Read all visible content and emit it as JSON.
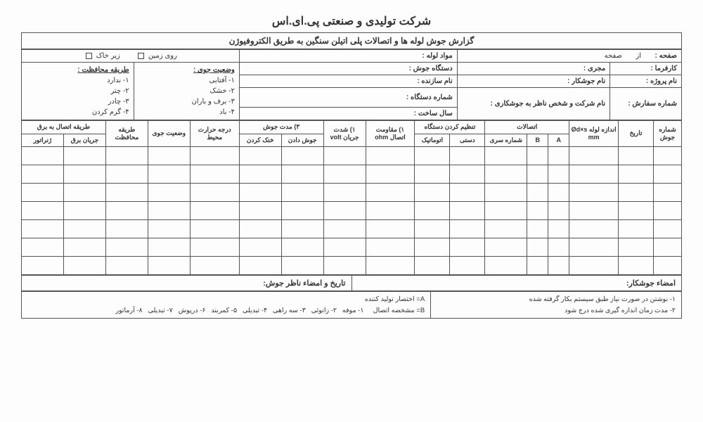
{
  "company": "شرکت تولیدی و صنعتی پی.ای.اس",
  "report_title": "گزارش جوش لوله ها و اتصالات پلی اتیلن سنگین به طریق الکتروفیوژن",
  "hdr": {
    "page_prefix": "صفحه :",
    "of": "از",
    "page_word": "صفحه",
    "pipe_material": "مواد لوله :",
    "on_ground": "روی زمین",
    "under_soil": "زیر خاک",
    "client": "کارفرما :",
    "contractor": "مجری :",
    "device": "دستگاه جوش :",
    "weather_title": "وضعیت جوی :",
    "protect_title": "طریقه محافظت :",
    "project": "نام پروژه :",
    "welder": "نام جوشکار :",
    "maker": "نام سازنده :",
    "order": "شماره سفارش :",
    "supervisor": "نام شرکت و شخص ناظر به جوشکاری :",
    "device_no": "شماره دستگاه :",
    "year": "سال ساخت :"
  },
  "weather": {
    "w1": "۱- آفتابی",
    "w2": "۲- خشک",
    "w3": "۳- برف و باران",
    "w4": "۴- باد"
  },
  "protect": {
    "p1": "۱- ندارد",
    "p2": "۲- چتر",
    "p3": "۳- چادر",
    "p4": "۴- گرم کردن"
  },
  "cols": {
    "weld_no": "شماره جوش",
    "date": "تاریخ",
    "pipe_size": "اندازه لوله Ød×s mm",
    "fittings": "اتصالات",
    "a": "A",
    "b": "B",
    "serial": "شماره سری",
    "device_set": "تنظیم کردن دستگاه",
    "manual": "دستی",
    "auto": "اتوماتیک",
    "resistance": "۱) مقاومت اتصال ohm",
    "current": "۱) شدت جریان volt",
    "weld_time": "۳) مدت جوش",
    "welding": "جوش دادن",
    "cooling": "خنک کردن",
    "ambient": "درجه حرارت محیط",
    "weather_col": "وضعیت جوی",
    "protect_col": "طریقه محافظت",
    "power": "طریقه اتصال به برق",
    "grid": "جریان برق",
    "gen": "ژنراتور"
  },
  "sig": {
    "welder_sig": "امضاء جوشکار:",
    "inspector_sig": "تاریخ و امضاء ناظر جوش:"
  },
  "legend": {
    "l1": "۱- نوشتن در صورت نیاز طبق سیستم بکار گرفته شده",
    "l2": "۲- مدت زمان اندازه گیری شده درج شود",
    "a_line": "A= اختصار تولید کننده",
    "b_line": "B= مشخصه اتصال",
    "items": "۱- موفه   ۲- زانوئی   ۳- سه راهی   ۴- تبدیلی   ۵- کمربند   ۶- درپوش   ۷- تبدیلی   ۸- آرماتور"
  },
  "style": {
    "border_color": "#555",
    "bg": "#fdfdfd",
    "empty_rows": 7
  }
}
